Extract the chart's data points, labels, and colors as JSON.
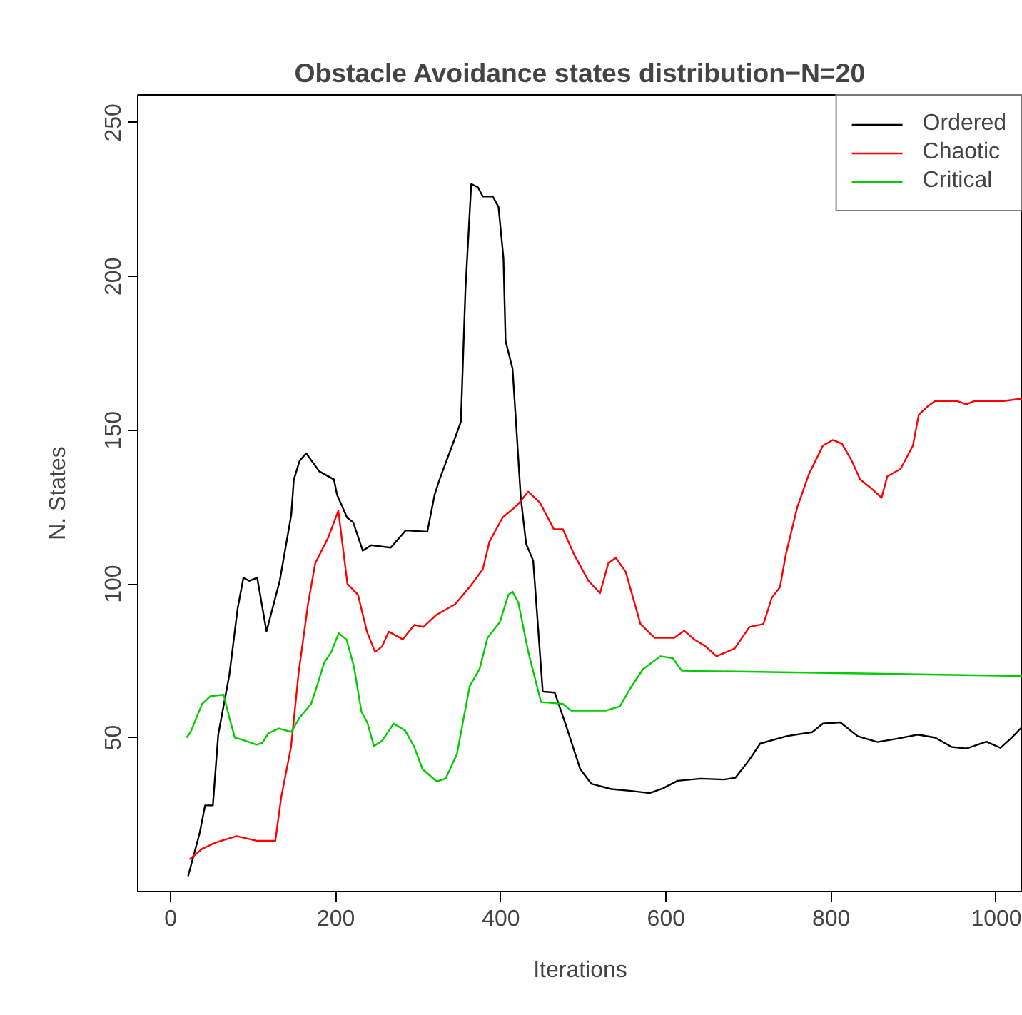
{
  "chart_data": {
    "type": "line",
    "title": "Obstacle Avoidance states distribution−N=20",
    "xlabel": "Iterations",
    "ylabel": "N. States",
    "xlim": [
      -40,
      1032
    ],
    "ylim": [
      0,
      259
    ],
    "xticks": [
      0,
      200,
      400,
      600,
      800,
      1000
    ],
    "yticks": [
      50,
      100,
      150,
      200,
      250
    ],
    "grid": false,
    "legend": "top right",
    "line_style": "solid",
    "marker": "none",
    "series": [
      {
        "name": "Ordered",
        "color": "#000000",
        "x": [
          21,
          35,
          41.6,
          51,
          57.5,
          71,
          81,
          88,
          95,
          104.7,
          116,
          132,
          146,
          149,
          156,
          164,
          180,
          197.6,
          201.5,
          213.5,
          221,
          232.6,
          243,
          266.5,
          284.6,
          310.8,
          319.6,
          325.6,
          344.5,
          351.4,
          357,
          364,
          372,
          378,
          390,
          397,
          403,
          405.6,
          414,
          418.7,
          424,
          430.5,
          439,
          450.6,
          465,
          478,
          496,
          509.5,
          533.8,
          558,
          580,
          596,
          614,
          642,
          670,
          684,
          700,
          714,
          746,
          777,
          790,
          811,
          832,
          856,
          880,
          905,
          926,
          946,
          964,
          988,
          1005,
          1018.6,
          1032
        ],
        "values": [
          5,
          19,
          28,
          28,
          51,
          70.5,
          92,
          102,
          101,
          102,
          84.6,
          101,
          122.5,
          133.8,
          140,
          142.5,
          136.6,
          134,
          129,
          121.6,
          120,
          110.8,
          112.6,
          111.8,
          117.4,
          117,
          129,
          134,
          147.6,
          152.7,
          196,
          230,
          229,
          226,
          226,
          222.6,
          206,
          179,
          170,
          150.6,
          128,
          113,
          107.6,
          65,
          64.7,
          54.6,
          39.8,
          35,
          33.3,
          32.7,
          32,
          33.5,
          36,
          36.7,
          36.4,
          37,
          42.5,
          48.1,
          50.5,
          51.8,
          54.6,
          55,
          50.5,
          48.6,
          49.7,
          51,
          50,
          47,
          46.5,
          48.7,
          46.7,
          50,
          53.7
        ]
      },
      {
        "name": "Chaotic",
        "color": "#ff0000",
        "x": [
          23,
          38,
          55,
          79.7,
          104,
          126.7,
          133.7,
          145.7,
          155,
          166.4,
          175,
          190.6,
          203,
          214,
          226.8,
          237.6,
          247.5,
          256,
          264,
          281,
          295,
          306,
          322,
          344.5,
          364,
          378,
          386,
          402,
          419,
          433,
          447,
          464,
          475,
          488.7,
          506,
          520,
          530,
          539,
          551,
          569,
          586,
          610,
          622,
          634,
          648,
          661,
          683,
          701,
          718,
          728,
          738,
          745,
          759,
          773,
          790,
          802,
          813,
          825,
          835,
          849,
          861,
          868,
          884,
          899,
          906,
          918,
          926,
          952,
          963.6,
          974,
          1009,
          1032
        ],
        "values": [
          10.5,
          13.9,
          16,
          18,
          16.5,
          16.5,
          30.5,
          47,
          71.4,
          93.7,
          106.7,
          115,
          123.8,
          100,
          96.5,
          84.5,
          77.9,
          79.7,
          84.5,
          82,
          86.7,
          86,
          90,
          93.4,
          99.7,
          104.8,
          113.7,
          121.6,
          125.4,
          130,
          126.5,
          117.8,
          117.8,
          109.5,
          101,
          97,
          106.7,
          108.5,
          104,
          87,
          82.5,
          82.5,
          84.8,
          82,
          79.7,
          76.5,
          79,
          86,
          87,
          95.5,
          99,
          109.5,
          125,
          135.7,
          145,
          146.8,
          145.6,
          140,
          134,
          131,
          128,
          135,
          137.4,
          145,
          155,
          158,
          159.5,
          159.5,
          158.4,
          159.5,
          159.5,
          160.3
        ]
      },
      {
        "name": "Critical",
        "color": "#00cd00",
        "x": [
          19,
          24,
          38,
          48,
          64,
          71,
          77.6,
          86,
          104,
          111,
          118,
          131,
          146,
          156,
          170,
          177,
          185.7,
          194.6,
          203.5,
          213,
          222,
          231,
          238,
          246,
          256,
          270,
          284,
          294.6,
          305,
          322,
          333,
          346.6,
          362,
          374,
          383.7,
          398.6,
          409,
          414,
          421,
          433,
          448.5,
          475,
          485,
          526.7,
          544,
          556,
          572,
          593,
          608,
          619,
          1032
        ],
        "values": [
          50,
          51.8,
          61,
          63.5,
          64,
          56.5,
          50,
          49.4,
          47.7,
          48.3,
          51.4,
          53,
          51.9,
          56.5,
          61,
          66.7,
          74.3,
          78,
          84,
          81.9,
          73,
          58.4,
          55,
          47.3,
          49,
          54.6,
          52.3,
          47.2,
          39.8,
          35.8,
          36.7,
          44.6,
          66.7,
          72.3,
          82.5,
          87.6,
          96.5,
          97.5,
          94,
          78,
          61.6,
          61,
          58.8,
          58.8,
          60.2,
          65.8,
          72.3,
          76.5,
          75.9,
          71.8,
          70.1
        ]
      }
    ]
  }
}
